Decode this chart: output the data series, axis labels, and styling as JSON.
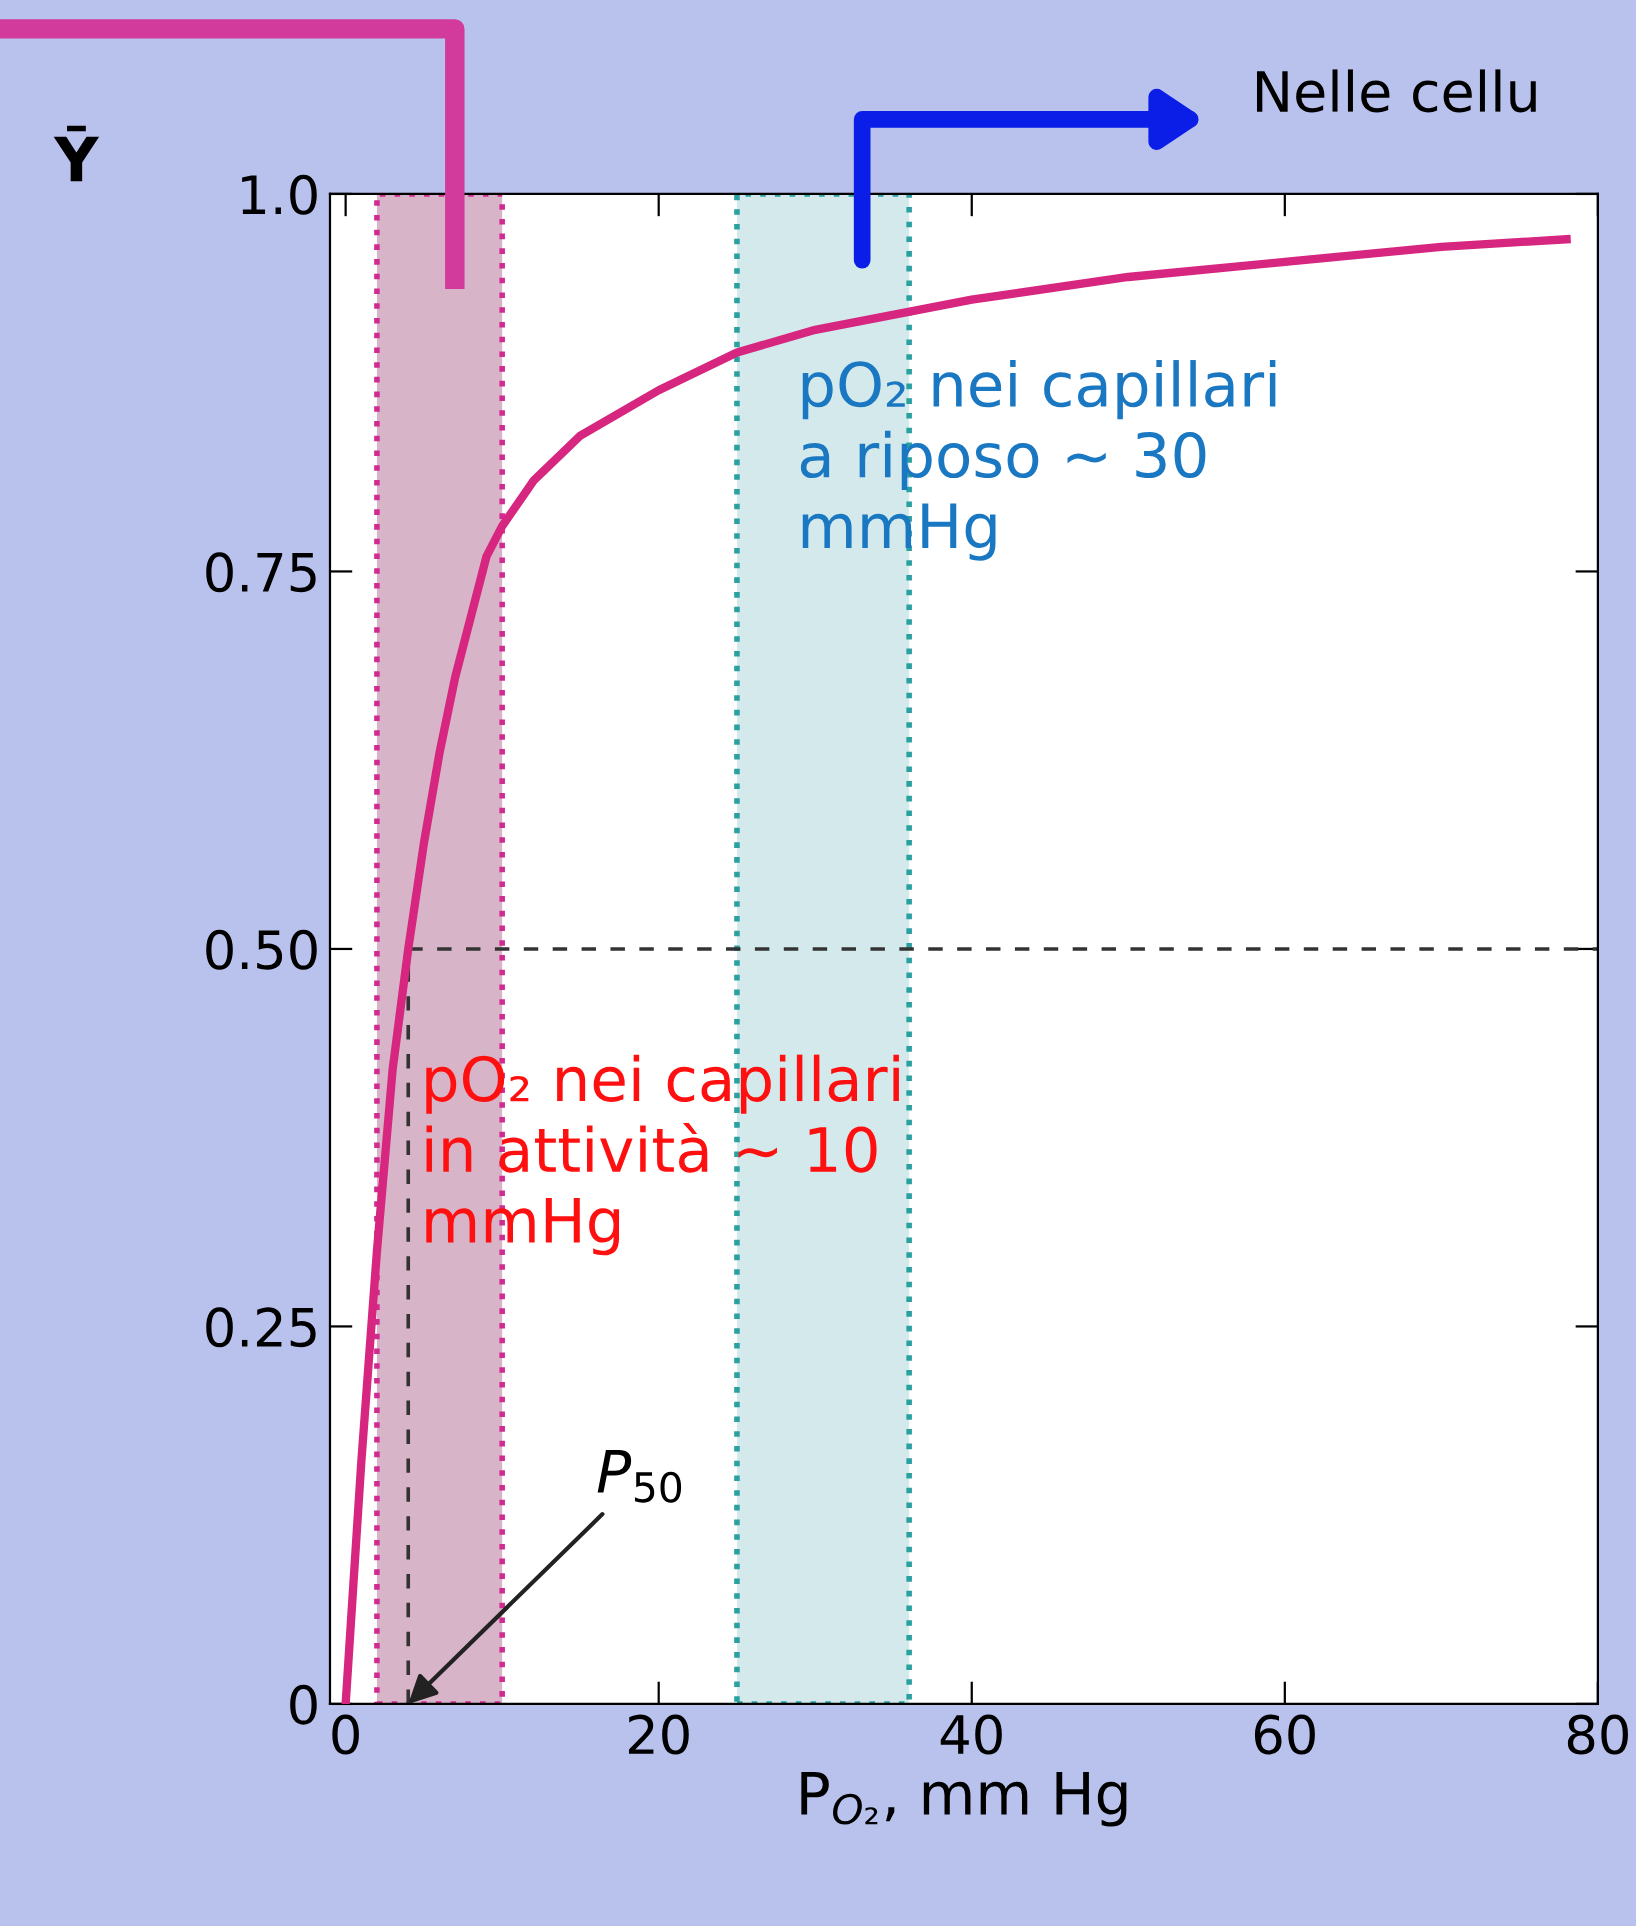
{
  "chart_data": {
    "type": "line",
    "xlabel": "P$_{O₂}$, mm Hg",
    "ylabel": "Ȳ",
    "x": [
      0,
      0.5,
      1,
      1.5,
      2,
      2.5,
      3,
      4,
      5,
      6,
      7,
      8,
      9,
      10,
      12,
      15,
      20,
      25,
      30,
      40,
      50,
      60,
      70,
      78
    ],
    "series": [
      {
        "color": "#d6267f",
        "values": [
          0,
          0.08,
          0.16,
          0.23,
          0.3,
          0.36,
          0.42,
          0.5,
          0.57,
          0.63,
          0.68,
          0.72,
          0.76,
          0.78,
          0.81,
          0.84,
          0.87,
          0.895,
          0.91,
          0.93,
          0.945,
          0.955,
          0.965,
          0.97
        ]
      }
    ],
    "xlim": [
      -1,
      80
    ],
    "ylim": [
      0,
      1.0
    ],
    "xticks": [
      0,
      20,
      40,
      60,
      80
    ],
    "yticks": [
      0,
      {
        "value": 0.25,
        "label": "0.25"
      },
      {
        "value": 0.5,
        "label": "0.50"
      },
      {
        "value": 0.75,
        "label": "0.75"
      },
      {
        "value": 1.0,
        "label": "1.0"
      }
    ],
    "ref_lines": [
      {
        "axis": "y",
        "value": 0.5,
        "line_style": "dashed",
        "color": "#333333"
      },
      {
        "axis": "x",
        "value": 4,
        "line_style": "dashed",
        "color": "#333333"
      }
    ],
    "bands": [
      {
        "axis": "x",
        "from": 2,
        "to": 10,
        "color": "#d8b4c8",
        "label": "pO₂ nei capillari\nin attività ~ 10\nmmHg"
      },
      {
        "axis": "x",
        "from": 25,
        "to": 36,
        "color": "#d4e9ec",
        "label": "pO₂ nei capillari\na riposo ~ 30\nmmHg"
      }
    ],
    "annotations": [
      {
        "text": "P$_{50}$",
        "x": 4,
        "y": 0
      },
      "Nelle cellu"
    ],
    "grid": false,
    "legend": false
  }
}
